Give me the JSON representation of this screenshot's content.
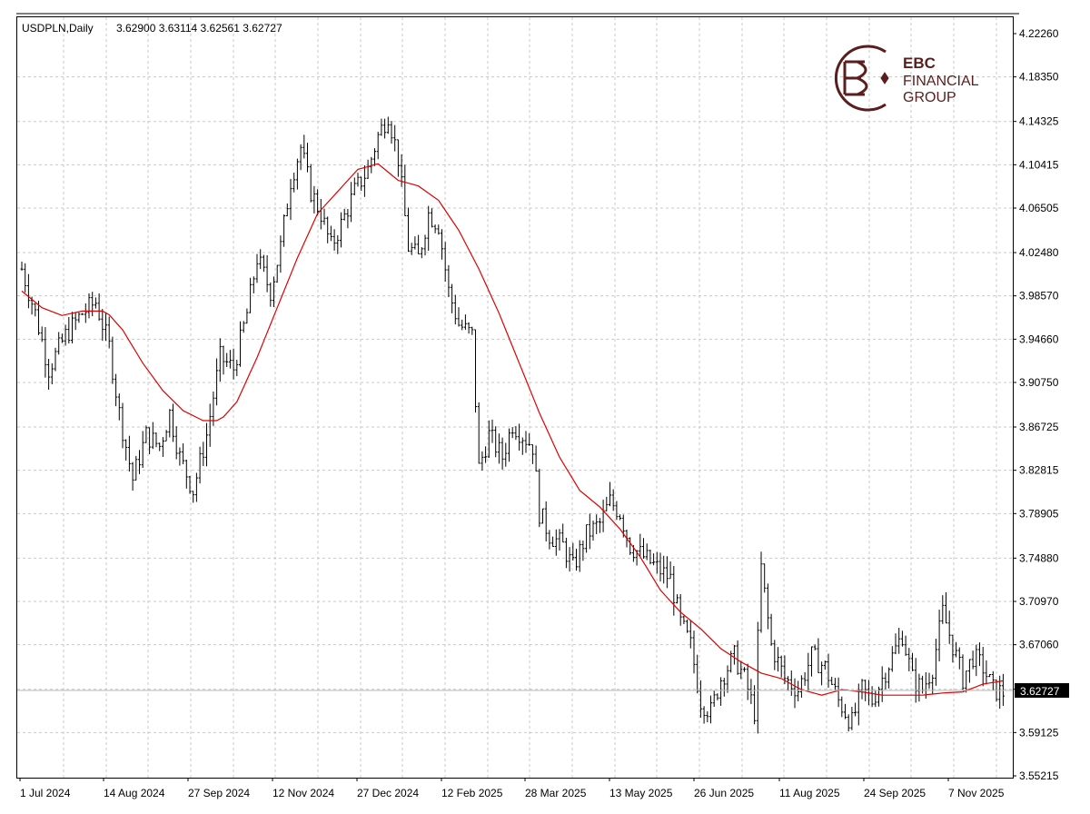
{
  "header": {
    "symbol": "USDPLN,Daily",
    "ohlc": "3.62900 3.63114 3.62561 3.62727"
  },
  "logo": {
    "line1": "EBC",
    "line2": "FINANCIAL",
    "line3": "GROUP",
    "color": "#5a1e1e"
  },
  "colors": {
    "bars": "#000000",
    "moving_average": "#e00000",
    "grid": "#c8c8c8",
    "price_label_bg": "#000000",
    "price_label_text": "#ffffff"
  },
  "chart_data": {
    "type": "ohlc",
    "symbol": "USDPLN",
    "timeframe": "Daily",
    "grid": true,
    "ylim": [
      3.55215,
      4.2226
    ],
    "y_ticks": [
      "4.22260",
      "4.18350",
      "4.14325",
      "4.10415",
      "4.06505",
      "4.02480",
      "3.98570",
      "3.94660",
      "3.90750",
      "3.86725",
      "3.82815",
      "3.78905",
      "3.74880",
      "3.70970",
      "3.67060",
      "3.63035",
      "3.59125",
      "3.55215"
    ],
    "x_labels": [
      "1 Jul 2024",
      "14 Aug 2024",
      "27 Sep 2024",
      "12 Nov 2024",
      "27 Dec 2024",
      "12 Feb 2025",
      "28 Mar 2025",
      "13 May 2025",
      "26 Jun 2025",
      "11 Aug 2025",
      "24 Sep 2025",
      "7 Nov 2025"
    ],
    "current_price": "3.62727",
    "close_anchors": [
      [
        0,
        4.01
      ],
      [
        4,
        3.97
      ],
      [
        8,
        3.92
      ],
      [
        13,
        3.95
      ],
      [
        18,
        3.97
      ],
      [
        22,
        3.98
      ],
      [
        26,
        3.94
      ],
      [
        29,
        3.88
      ],
      [
        33,
        3.82
      ],
      [
        37,
        3.86
      ],
      [
        41,
        3.85
      ],
      [
        44,
        3.88
      ],
      [
        47,
        3.84
      ],
      [
        51,
        3.81
      ],
      [
        55,
        3.86
      ],
      [
        59,
        3.93
      ],
      [
        63,
        3.92
      ],
      [
        67,
        3.97
      ],
      [
        70,
        4.02
      ],
      [
        74,
        3.99
      ],
      [
        77,
        4.03
      ],
      [
        80,
        4.09
      ],
      [
        83,
        4.12
      ],
      [
        86,
        4.08
      ],
      [
        89,
        4.06
      ],
      [
        92,
        4.03
      ],
      [
        95,
        4.05
      ],
      [
        99,
        4.08
      ],
      [
        103,
        4.1
      ],
      [
        106,
        4.13
      ],
      [
        109,
        4.15
      ],
      [
        112,
        4.11
      ],
      [
        115,
        4.03
      ],
      [
        118,
        4.02
      ],
      [
        121,
        4.06
      ],
      [
        124,
        4.05
      ],
      [
        127,
        3.99
      ],
      [
        130,
        3.96
      ],
      [
        134,
        3.95
      ],
      [
        136,
        3.83
      ],
      [
        139,
        3.86
      ],
      [
        143,
        3.84
      ],
      [
        146,
        3.87
      ],
      [
        149,
        3.86
      ],
      [
        152,
        3.85
      ],
      [
        154,
        3.79
      ],
      [
        157,
        3.77
      ],
      [
        161,
        3.76
      ],
      [
        164,
        3.74
      ],
      [
        168,
        3.77
      ],
      [
        172,
        3.78
      ],
      [
        175,
        3.8
      ],
      [
        178,
        3.79
      ],
      [
        181,
        3.76
      ],
      [
        185,
        3.75
      ],
      [
        189,
        3.74
      ],
      [
        193,
        3.73
      ],
      [
        196,
        3.69
      ],
      [
        199,
        3.67
      ],
      [
        202,
        3.62
      ],
      [
        205,
        3.61
      ],
      [
        208,
        3.64
      ],
      [
        212,
        3.66
      ],
      [
        215,
        3.64
      ],
      [
        218,
        3.61
      ],
      [
        220,
        3.74
      ],
      [
        223,
        3.67
      ],
      [
        227,
        3.64
      ],
      [
        231,
        3.63
      ],
      [
        235,
        3.66
      ],
      [
        239,
        3.65
      ],
      [
        243,
        3.62
      ],
      [
        247,
        3.6
      ],
      [
        250,
        3.63
      ],
      [
        253,
        3.62
      ],
      [
        256,
        3.64
      ],
      [
        259,
        3.66
      ],
      [
        262,
        3.68
      ],
      [
        265,
        3.64
      ],
      [
        268,
        3.63
      ],
      [
        271,
        3.65
      ],
      [
        274,
        3.7
      ],
      [
        277,
        3.67
      ],
      [
        280,
        3.64
      ],
      [
        283,
        3.66
      ],
      [
        286,
        3.65
      ],
      [
        289,
        3.63
      ],
      [
        292,
        3.62727
      ]
    ],
    "ma_anchors": [
      [
        0,
        3.99
      ],
      [
        6,
        3.975
      ],
      [
        12,
        3.968
      ],
      [
        18,
        3.972
      ],
      [
        25,
        3.972
      ],
      [
        30,
        3.955
      ],
      [
        36,
        3.925
      ],
      [
        42,
        3.9
      ],
      [
        48,
        3.882
      ],
      [
        54,
        3.873
      ],
      [
        59,
        3.873
      ],
      [
        64,
        3.89
      ],
      [
        70,
        3.93
      ],
      [
        76,
        3.975
      ],
      [
        82,
        4.02
      ],
      [
        88,
        4.06
      ],
      [
        94,
        4.08
      ],
      [
        100,
        4.1
      ],
      [
        106,
        4.105
      ],
      [
        112,
        4.09
      ],
      [
        118,
        4.085
      ],
      [
        124,
        4.072
      ],
      [
        130,
        4.045
      ],
      [
        136,
        4.01
      ],
      [
        142,
        3.97
      ],
      [
        148,
        3.925
      ],
      [
        154,
        3.88
      ],
      [
        160,
        3.84
      ],
      [
        166,
        3.81
      ],
      [
        172,
        3.795
      ],
      [
        178,
        3.775
      ],
      [
        184,
        3.75
      ],
      [
        190,
        3.72
      ],
      [
        196,
        3.7
      ],
      [
        202,
        3.685
      ],
      [
        208,
        3.667
      ],
      [
        214,
        3.655
      ],
      [
        220,
        3.645
      ],
      [
        226,
        3.64
      ],
      [
        232,
        3.63
      ],
      [
        238,
        3.625
      ],
      [
        244,
        3.63
      ],
      [
        250,
        3.628
      ],
      [
        256,
        3.625
      ],
      [
        262,
        3.625
      ],
      [
        268,
        3.625
      ],
      [
        274,
        3.627
      ],
      [
        280,
        3.628
      ],
      [
        286,
        3.635
      ],
      [
        292,
        3.638
      ]
    ]
  }
}
